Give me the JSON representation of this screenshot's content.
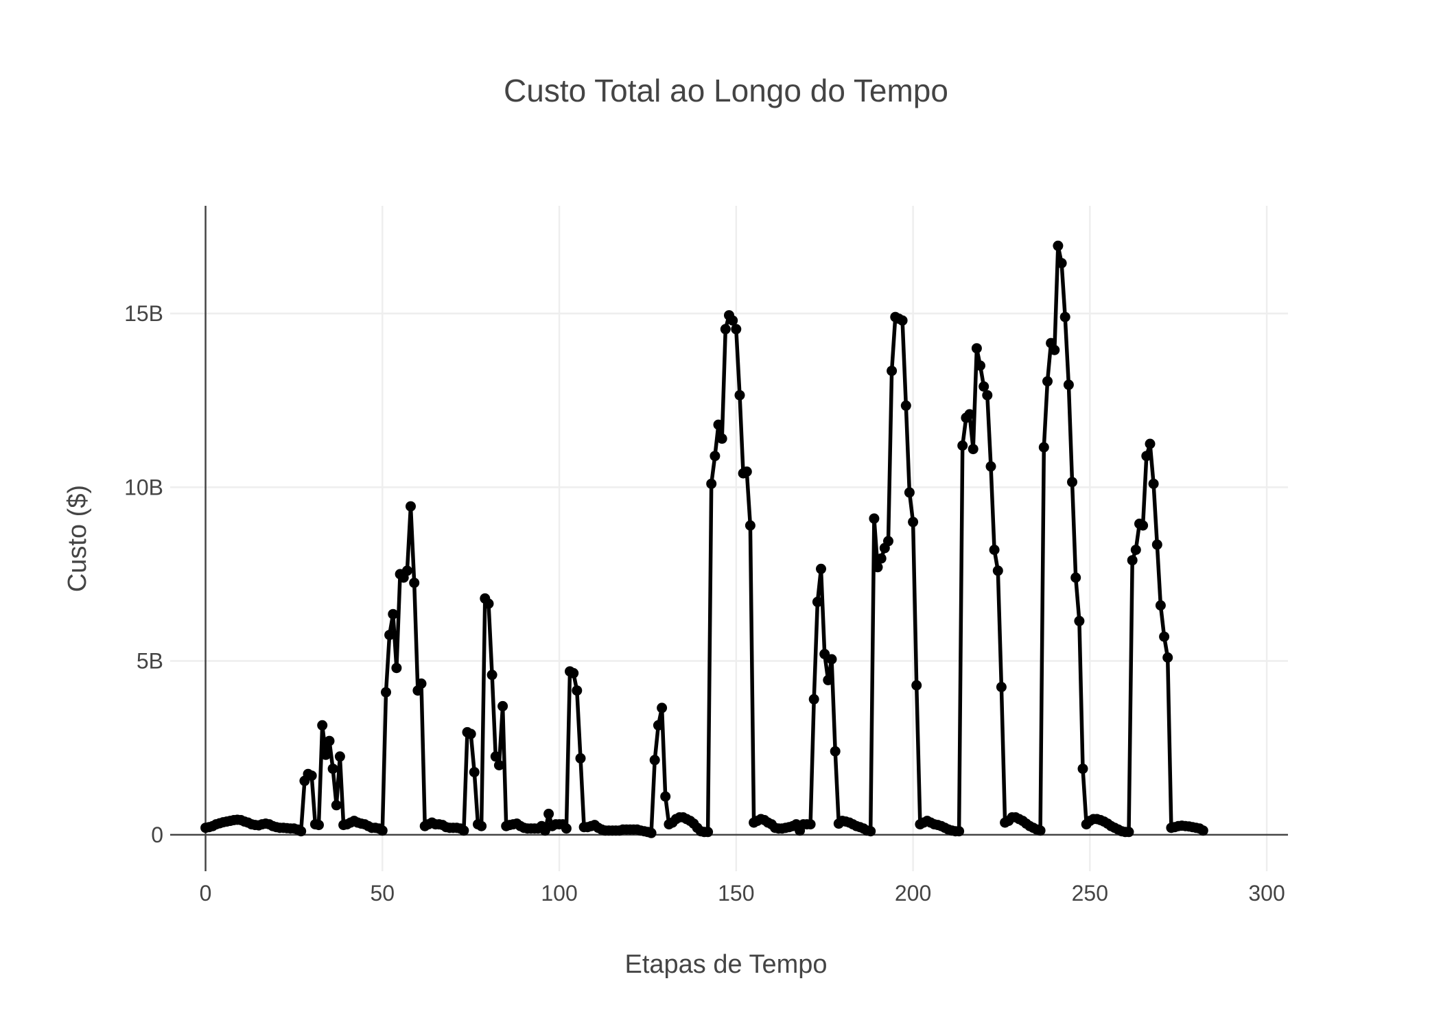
{
  "chart_data": {
    "type": "line",
    "title": "Custo Total ao Longo do Tempo",
    "xlabel": "Etapas de Tempo",
    "ylabel": "Custo ($)",
    "xlim": [
      -10,
      306
    ],
    "ylim": [
      -1.05,
      18.1
    ],
    "x_ticks": [
      0,
      50,
      100,
      150,
      200,
      250,
      300
    ],
    "x_tick_labels": [
      "0",
      "50",
      "100",
      "150",
      "200",
      "250",
      "300"
    ],
    "y_ticks": [
      0,
      5,
      10,
      15
    ],
    "y_tick_labels": [
      "0",
      "5B",
      "10B",
      "15B"
    ],
    "y_unit": "billions of $",
    "grid": true,
    "legend": "none",
    "colors": {
      "line": "#000000",
      "marker": "#000000",
      "grid": "#eeeeee",
      "axis": "#444444",
      "text": "#444444"
    },
    "series": [
      {
        "x_start": 0,
        "x_step": 1,
        "values": [
          0.2,
          0.22,
          0.25,
          0.3,
          0.33,
          0.36,
          0.38,
          0.4,
          0.42,
          0.43,
          0.42,
          0.38,
          0.35,
          0.3,
          0.28,
          0.27,
          0.3,
          0.32,
          0.3,
          0.25,
          0.22,
          0.2,
          0.2,
          0.19,
          0.18,
          0.18,
          0.15,
          0.1,
          1.55,
          1.75,
          1.7,
          0.3,
          0.28,
          3.15,
          2.3,
          2.7,
          1.9,
          0.85,
          2.25,
          0.28,
          0.3,
          0.35,
          0.4,
          0.35,
          0.32,
          0.3,
          0.25,
          0.2,
          0.2,
          0.18,
          0.12,
          4.1,
          5.75,
          6.35,
          4.8,
          7.5,
          7.4,
          7.6,
          9.45,
          7.25,
          4.15,
          4.35,
          0.25,
          0.3,
          0.35,
          0.3,
          0.3,
          0.28,
          0.22,
          0.2,
          0.2,
          0.2,
          0.18,
          0.12,
          2.95,
          2.9,
          1.8,
          0.3,
          0.25,
          6.8,
          6.65,
          4.6,
          2.25,
          2.0,
          3.7,
          0.25,
          0.28,
          0.3,
          0.32,
          0.25,
          0.2,
          0.18,
          0.18,
          0.18,
          0.18,
          0.25,
          0.12,
          0.6,
          0.25,
          0.3,
          0.3,
          0.3,
          0.18,
          4.7,
          4.65,
          4.15,
          2.2,
          0.22,
          0.22,
          0.25,
          0.28,
          0.2,
          0.15,
          0.12,
          0.12,
          0.12,
          0.12,
          0.12,
          0.15,
          0.15,
          0.15,
          0.15,
          0.15,
          0.12,
          0.1,
          0.08,
          0.05,
          2.15,
          3.15,
          3.65,
          1.1,
          0.3,
          0.35,
          0.45,
          0.5,
          0.5,
          0.45,
          0.4,
          0.32,
          0.2,
          0.1,
          0.08,
          0.08,
          10.1,
          10.9,
          11.8,
          11.4,
          14.55,
          14.95,
          14.8,
          14.55,
          12.65,
          10.4,
          10.45,
          8.9,
          0.35,
          0.4,
          0.45,
          0.42,
          0.35,
          0.3,
          0.2,
          0.18,
          0.18,
          0.2,
          0.22,
          0.25,
          0.3,
          0.12,
          0.3,
          0.3,
          0.3,
          3.9,
          6.7,
          7.65,
          5.2,
          4.45,
          5.05,
          2.4,
          0.32,
          0.4,
          0.38,
          0.35,
          0.3,
          0.25,
          0.22,
          0.18,
          0.12,
          0.1,
          9.1,
          7.7,
          7.95,
          8.25,
          8.45,
          13.35,
          14.9,
          14.85,
          14.8,
          12.35,
          9.85,
          9.0,
          4.3,
          0.3,
          0.35,
          0.4,
          0.35,
          0.3,
          0.28,
          0.25,
          0.2,
          0.15,
          0.12,
          0.1,
          0.1,
          11.2,
          12.0,
          12.1,
          11.1,
          14.0,
          13.5,
          12.9,
          12.65,
          10.6,
          8.2,
          7.6,
          4.25,
          0.35,
          0.4,
          0.5,
          0.5,
          0.45,
          0.4,
          0.32,
          0.25,
          0.2,
          0.15,
          0.12,
          11.15,
          13.05,
          14.15,
          13.95,
          16.95,
          16.45,
          14.9,
          12.95,
          10.15,
          7.4,
          6.15,
          1.9,
          0.3,
          0.4,
          0.45,
          0.45,
          0.42,
          0.38,
          0.32,
          0.25,
          0.2,
          0.15,
          0.1,
          0.08,
          0.08,
          7.9,
          8.2,
          8.95,
          8.9,
          10.9,
          11.25,
          10.1,
          8.35,
          6.6,
          5.7,
          5.1,
          0.2,
          0.22,
          0.25,
          0.26,
          0.25,
          0.24,
          0.22,
          0.2,
          0.18,
          0.12
        ]
      }
    ]
  }
}
